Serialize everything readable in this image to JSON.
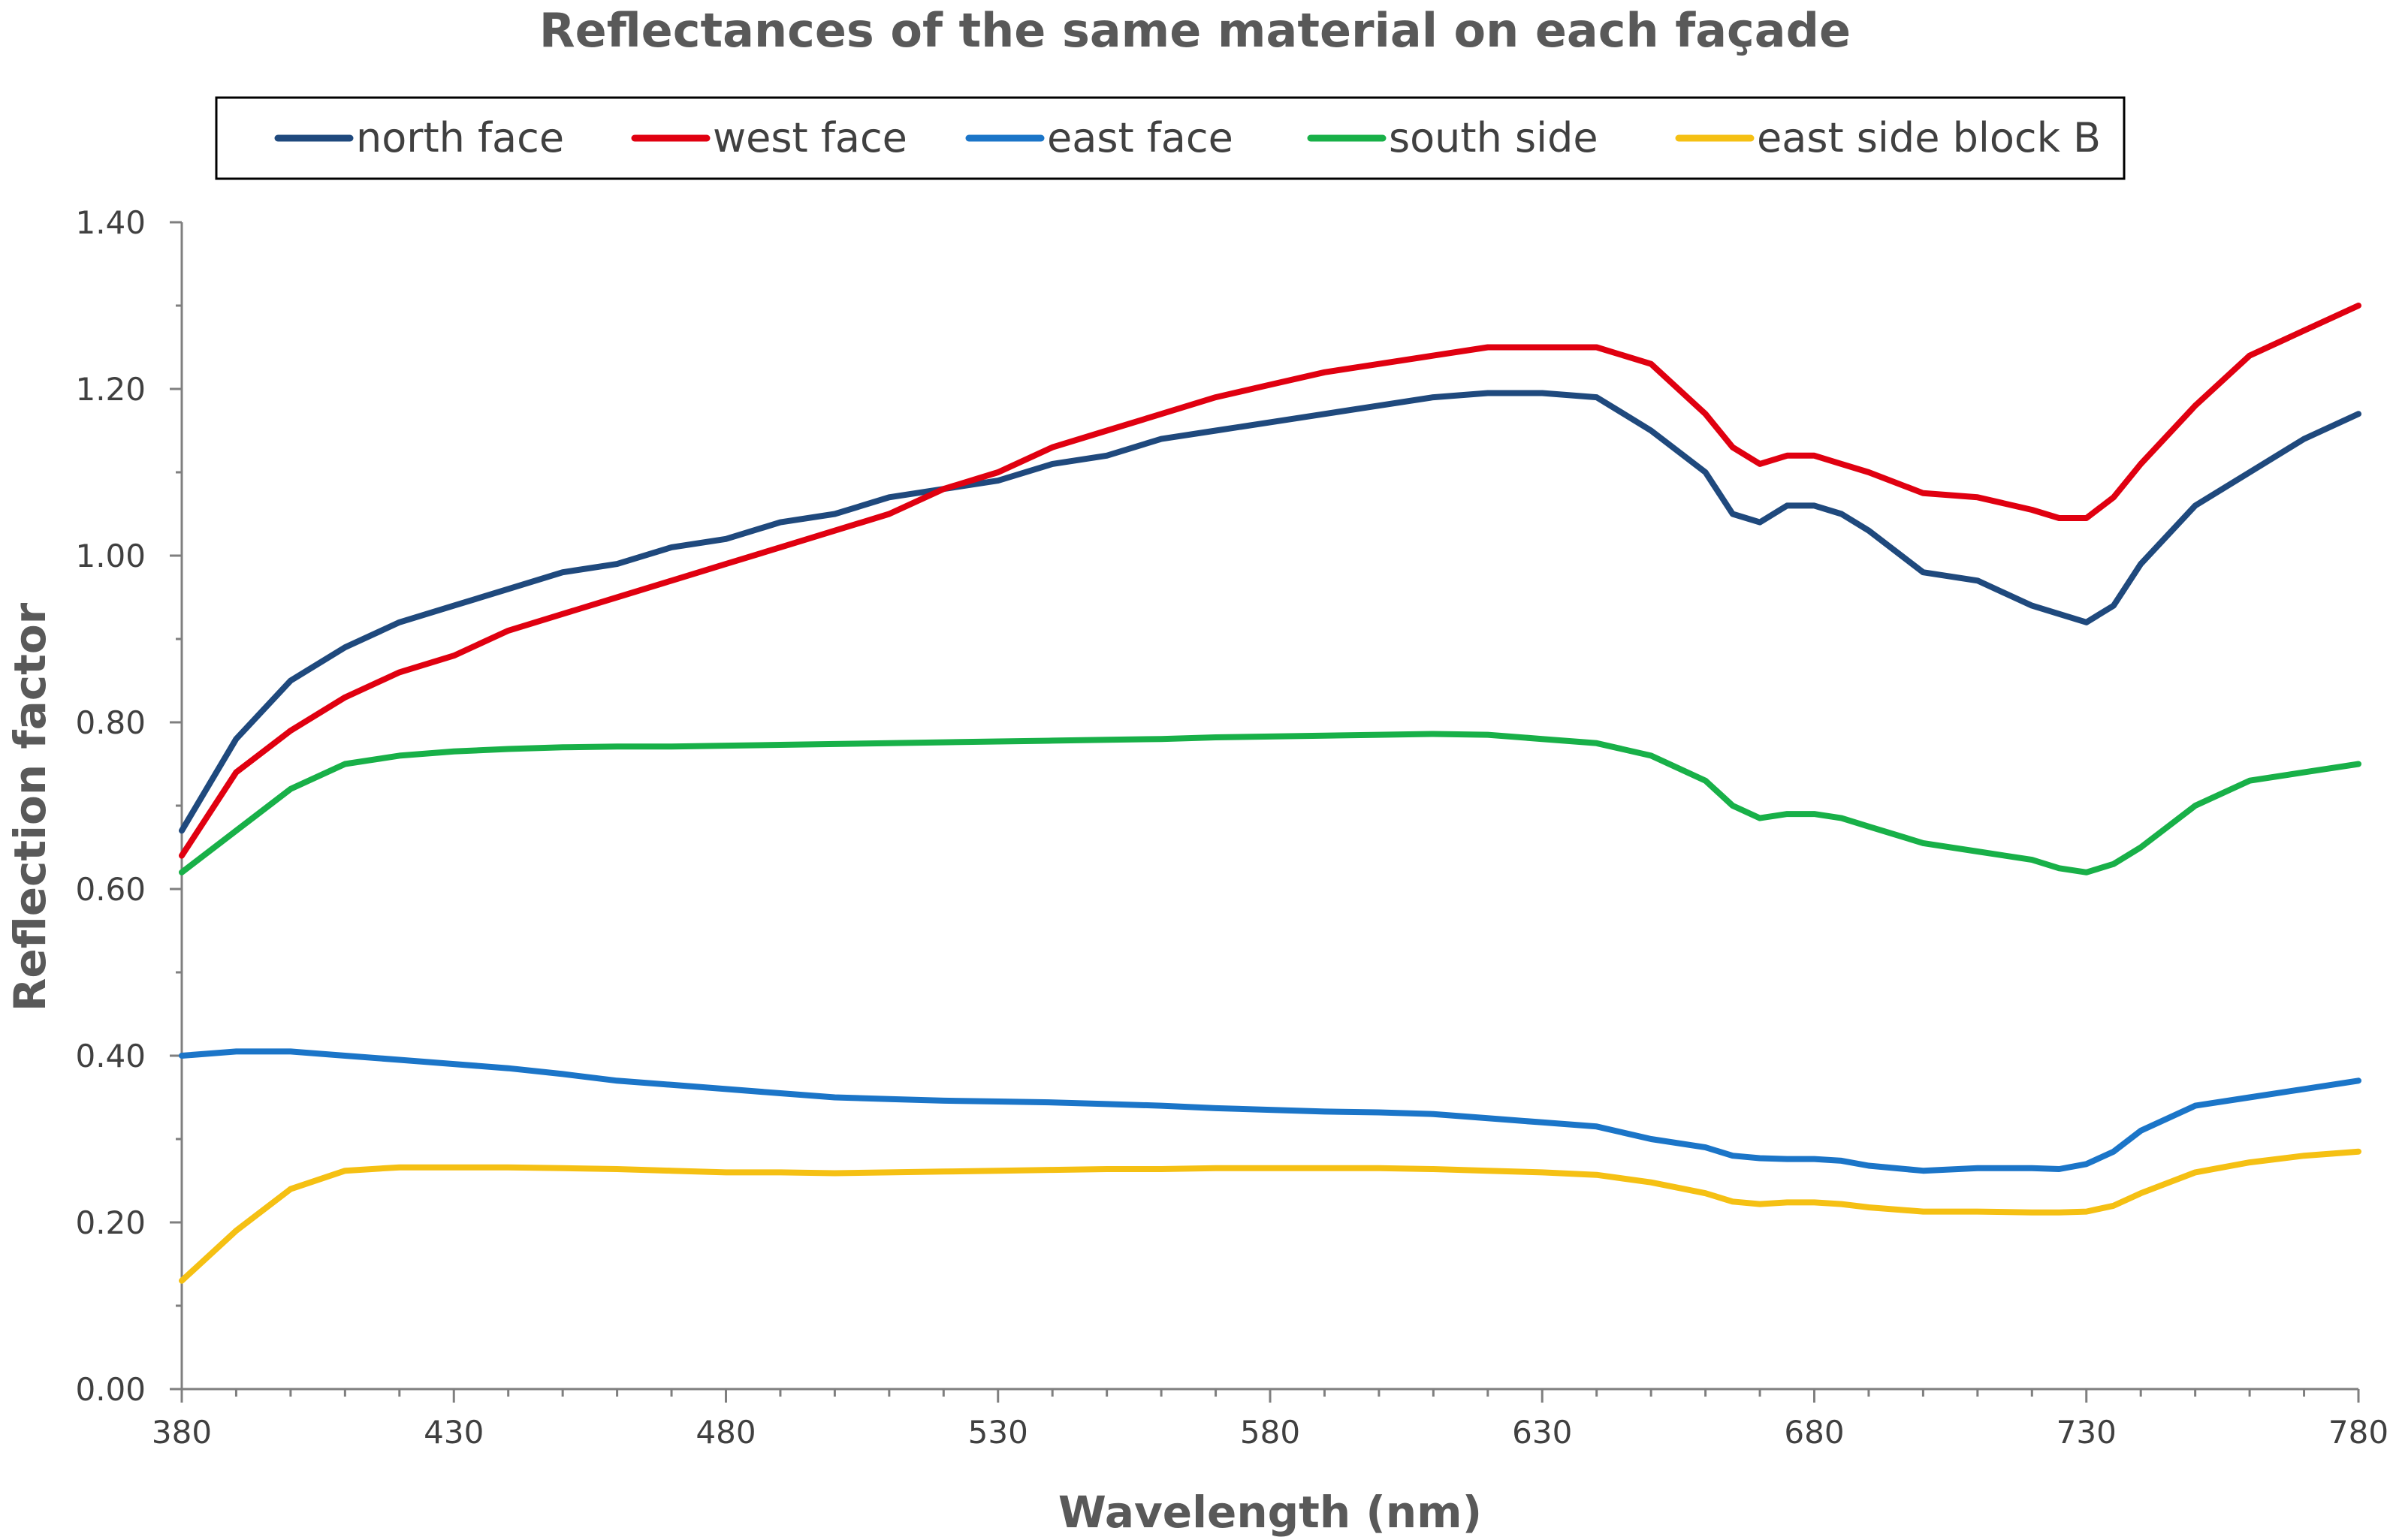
{
  "chart_data": {
    "type": "line",
    "title": "Reflectances of the same material on each façade",
    "xlabel": "Wavelength (nm)",
    "ylabel": "Reflection factor",
    "xlim": [
      380,
      780
    ],
    "ylim": [
      0,
      1.4
    ],
    "x_ticks": [
      "380",
      "430",
      "480",
      "530",
      "580",
      "630",
      "680",
      "730",
      "780"
    ],
    "y_ticks": [
      "0.00",
      "0.20",
      "0.40",
      "0.60",
      "0.80",
      "1.00",
      "1.20",
      "1.40"
    ],
    "legend_position": "top",
    "grid": false,
    "x": [
      380,
      390,
      400,
      410,
      420,
      430,
      440,
      450,
      460,
      470,
      480,
      490,
      500,
      510,
      520,
      530,
      540,
      550,
      560,
      570,
      580,
      590,
      600,
      610,
      620,
      630,
      640,
      650,
      660,
      665,
      670,
      675,
      680,
      685,
      690,
      700,
      710,
      720,
      725,
      730,
      735,
      740,
      750,
      760,
      770,
      780
    ],
    "series": [
      {
        "name": "north face",
        "color": "#1F497D",
        "values": [
          0.67,
          0.78,
          0.85,
          0.89,
          0.92,
          0.94,
          0.96,
          0.98,
          0.99,
          1.01,
          1.02,
          1.04,
          1.05,
          1.07,
          1.08,
          1.09,
          1.11,
          1.12,
          1.14,
          1.15,
          1.16,
          1.17,
          1.18,
          1.19,
          1.195,
          1.195,
          1.19,
          1.15,
          1.1,
          1.05,
          1.04,
          1.06,
          1.06,
          1.05,
          1.03,
          0.98,
          0.97,
          0.94,
          0.93,
          0.92,
          0.94,
          0.99,
          1.06,
          1.1,
          1.14,
          1.17
        ]
      },
      {
        "name": "west face",
        "color": "#E00010",
        "values": [
          0.64,
          0.74,
          0.79,
          0.83,
          0.86,
          0.88,
          0.91,
          0.93,
          0.95,
          0.97,
          0.99,
          1.01,
          1.03,
          1.05,
          1.08,
          1.1,
          1.13,
          1.15,
          1.17,
          1.19,
          1.205,
          1.22,
          1.23,
          1.24,
          1.25,
          1.25,
          1.25,
          1.23,
          1.17,
          1.13,
          1.11,
          1.12,
          1.12,
          1.11,
          1.1,
          1.075,
          1.07,
          1.055,
          1.045,
          1.045,
          1.07,
          1.11,
          1.18,
          1.24,
          1.27,
          1.3
        ]
      },
      {
        "name": "east face",
        "color": "#1B75C8",
        "values": [
          0.4,
          0.405,
          0.405,
          0.4,
          0.395,
          0.39,
          0.385,
          0.378,
          0.37,
          0.365,
          0.36,
          0.355,
          0.35,
          0.348,
          0.346,
          0.345,
          0.344,
          0.342,
          0.34,
          0.337,
          0.335,
          0.333,
          0.332,
          0.33,
          0.325,
          0.32,
          0.315,
          0.3,
          0.29,
          0.28,
          0.277,
          0.276,
          0.276,
          0.274,
          0.268,
          0.262,
          0.265,
          0.265,
          0.264,
          0.27,
          0.285,
          0.31,
          0.34,
          0.35,
          0.36,
          0.37
        ]
      },
      {
        "name": "south side",
        "color": "#18B048",
        "values": [
          0.62,
          0.67,
          0.72,
          0.75,
          0.76,
          0.765,
          0.768,
          0.77,
          0.771,
          0.771,
          0.772,
          0.773,
          0.774,
          0.775,
          0.776,
          0.777,
          0.778,
          0.779,
          0.78,
          0.782,
          0.783,
          0.784,
          0.785,
          0.786,
          0.785,
          0.78,
          0.775,
          0.76,
          0.73,
          0.7,
          0.685,
          0.69,
          0.69,
          0.685,
          0.675,
          0.655,
          0.645,
          0.635,
          0.625,
          0.62,
          0.63,
          0.65,
          0.7,
          0.73,
          0.74,
          0.75
        ]
      },
      {
        "name": "east side block B",
        "color": "#F5C013",
        "values": [
          0.13,
          0.19,
          0.24,
          0.262,
          0.266,
          0.266,
          0.266,
          0.265,
          0.264,
          0.262,
          0.26,
          0.26,
          0.259,
          0.26,
          0.261,
          0.262,
          0.263,
          0.264,
          0.264,
          0.265,
          0.265,
          0.265,
          0.265,
          0.264,
          0.262,
          0.26,
          0.257,
          0.248,
          0.235,
          0.225,
          0.222,
          0.224,
          0.224,
          0.222,
          0.218,
          0.213,
          0.213,
          0.212,
          0.212,
          0.213,
          0.22,
          0.235,
          0.26,
          0.272,
          0.28,
          0.285
        ]
      }
    ]
  }
}
